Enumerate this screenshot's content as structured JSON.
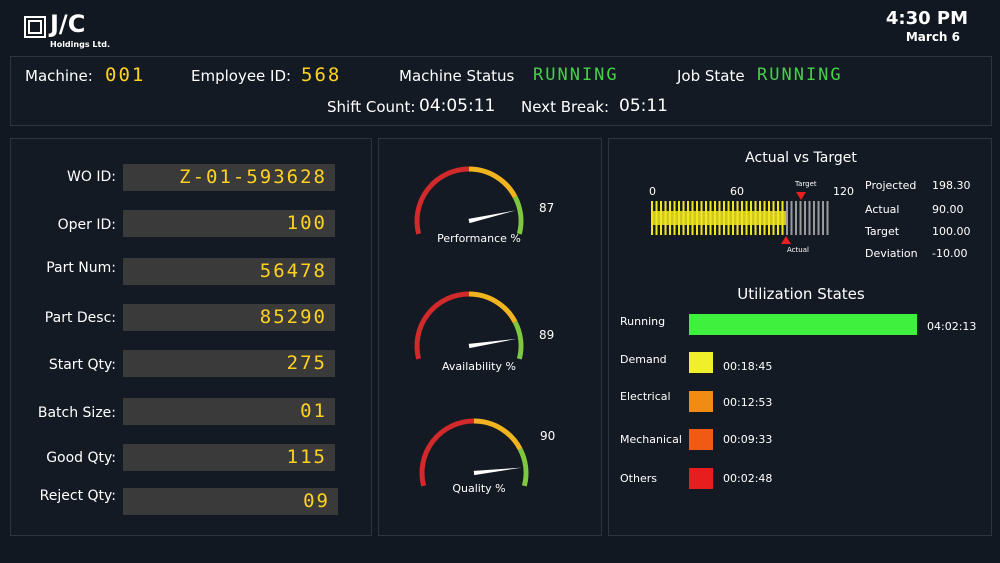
{
  "header": {
    "logo_text": "J/C",
    "logo_sub": "Holdings Ltd.",
    "time": "4:30 PM",
    "date": "March 6"
  },
  "info": {
    "machine_label": "Machine:",
    "machine_value": "001",
    "employee_label": "Employee ID:",
    "employee_value": "568",
    "status_label": "Machine Status",
    "status_value": "RUNNING",
    "job_label": "Job State",
    "job_value": "RUNNING",
    "shift_label": "Shift Count:",
    "shift_value": "04:05:11",
    "break_label": "Next Break:",
    "break_value": "05:11"
  },
  "fields": [
    {
      "label": "WO ID:",
      "value": "Z-01-593628"
    },
    {
      "label": "Oper ID:",
      "value": "100"
    },
    {
      "label": "Part Num:",
      "value": "56478"
    },
    {
      "label": "Part Desc:",
      "value": "85290"
    },
    {
      "label": "Start Qty:",
      "value": "275"
    },
    {
      "label": "Batch Size:",
      "value": "01"
    },
    {
      "label": "Good Qty:",
      "value": "115"
    },
    {
      "label": "Reject Qty:",
      "value": "09"
    }
  ],
  "gauges": [
    {
      "label": "Performance %",
      "value": 87
    },
    {
      "label": "Availability %",
      "value": 89
    },
    {
      "label": "Quality %",
      "value": 90
    }
  ],
  "actual_vs_target": {
    "title": "Actual vs Target",
    "scale_ticks": [
      "0",
      "60",
      "120"
    ],
    "scale_max": 120,
    "actual": 90,
    "target": 100,
    "target_marker_label": "Target",
    "actual_marker_label": "Actual",
    "stats": [
      {
        "label": "Projected",
        "value": "198.30"
      },
      {
        "label": "Actual",
        "value": "90.00"
      },
      {
        "label": "Target",
        "value": "100.00"
      },
      {
        "label": "Deviation",
        "value": "-10.00"
      }
    ]
  },
  "utilization": {
    "title": "Utilization States",
    "max_seconds": 14533,
    "states": [
      {
        "label": "Running",
        "time": "04:02:13",
        "seconds": 14533,
        "color": "#3ff03f"
      },
      {
        "label": "Demand",
        "time": "00:18:45",
        "seconds": 1125,
        "color": "#f0f02a"
      },
      {
        "label": "Electrical",
        "time": "00:12:53",
        "seconds": 773,
        "color": "#f08c14"
      },
      {
        "label": "Mechanical",
        "time": "00:09:33",
        "seconds": 573,
        "color": "#f05a14"
      },
      {
        "label": "Others",
        "time": "00:02:48",
        "seconds": 168,
        "color": "#e81e1e"
      }
    ]
  },
  "colors": {
    "value_yellow": "#ffd21f",
    "status_green": "#46d04a"
  }
}
